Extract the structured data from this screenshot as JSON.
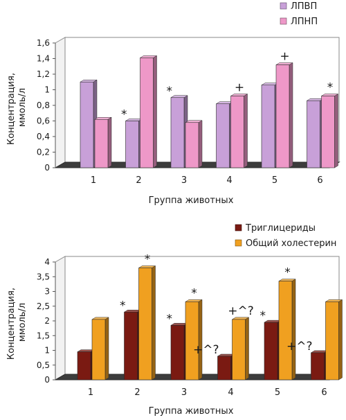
{
  "chart_data": [
    {
      "type": "bar",
      "categories": [
        "1",
        "2",
        "3",
        "4",
        "5",
        "6"
      ],
      "series": [
        {
          "name": "ЛПВП",
          "values": [
            1.1,
            0.6,
            0.9,
            0.82,
            1.06,
            0.86
          ],
          "color": "#c8a0d8"
        },
        {
          "name": "ЛПНП",
          "values": [
            0.62,
            1.41,
            0.58,
            0.92,
            1.32,
            0.92
          ],
          "color": "#ee98c8"
        }
      ],
      "annotations": [
        {
          "category": "2",
          "series": "ЛПВП",
          "text": "*"
        },
        {
          "category": "3",
          "series": "ЛПВП",
          "text": "*"
        },
        {
          "category": "4",
          "series": "ЛПНП",
          "text": "+"
        },
        {
          "category": "5",
          "series": "ЛПНП",
          "text": "+"
        },
        {
          "category": "6",
          "series": "ЛПНП",
          "text": "*"
        }
      ],
      "xlabel": "Группа животных",
      "ylabel": "Концентрация, ммоль/л",
      "yticks": [
        "0",
        "0,2",
        "0,4",
        "0,6",
        "0,8",
        "1",
        "1,2",
        "1,4",
        "1,6"
      ],
      "ylim": [
        0,
        1.6
      ],
      "legend_position": "top-right",
      "grid": false
    },
    {
      "type": "bar",
      "categories": [
        "1",
        "2",
        "3",
        "4",
        "5",
        "6"
      ],
      "series": [
        {
          "name": "Триглицериды",
          "values": [
            0.95,
            2.3,
            1.85,
            0.8,
            1.95,
            0.92
          ],
          "color": "#7a1a12"
        },
        {
          "name": "Общий холестерин",
          "values": [
            2.05,
            3.8,
            2.65,
            2.05,
            3.35,
            2.65
          ],
          "color": "#f0a020"
        }
      ],
      "annotations": [
        {
          "category": "2",
          "series": "Триглицериды",
          "text": "*"
        },
        {
          "category": "2",
          "series": "Общий холестерин",
          "text": "*"
        },
        {
          "category": "3",
          "series": "Триглицериды",
          "text": "*"
        },
        {
          "category": "3",
          "series": "Общий холестерин",
          "text": "*"
        },
        {
          "category": "4",
          "series": "Триглицериды",
          "text": "+^?"
        },
        {
          "category": "4",
          "series": "Общий холестерин",
          "text": "+^?"
        },
        {
          "category": "5",
          "series": "Триглицериды",
          "text": "*"
        },
        {
          "category": "5",
          "series": "Общий холестерин",
          "text": "*"
        },
        {
          "category": "6",
          "series": "Триглицериды",
          "text": "+^?"
        }
      ],
      "xlabel": "Группа животных",
      "ylabel": "Концентрация, ммоль/л",
      "yticks": [
        "0",
        "0,5",
        "1",
        "1,5",
        "2",
        "2,5",
        "3",
        "3,5",
        "4"
      ],
      "ylim": [
        0,
        4
      ],
      "legend_position": "top-right",
      "grid": false
    }
  ]
}
